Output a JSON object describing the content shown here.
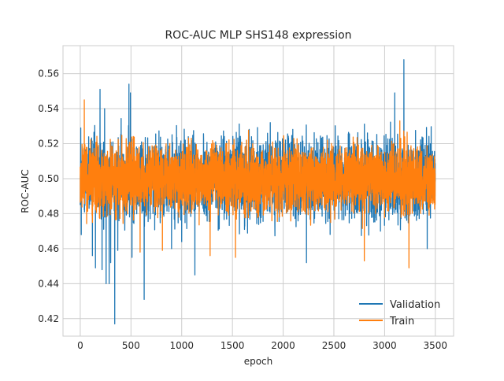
{
  "chart_data": {
    "type": "line",
    "title": "ROC-AUC MLP SHS148 expression",
    "xlabel": "epoch",
    "ylabel": "ROC-AUC",
    "xlim": [
      -170,
      3680
    ],
    "ylim": [
      0.41,
      0.576
    ],
    "xticks": [
      0,
      500,
      1000,
      1500,
      2000,
      2500,
      3000,
      3500
    ],
    "xtick_labels": [
      "0",
      "500",
      "1000",
      "1500",
      "2000",
      "2500",
      "3000",
      "3500"
    ],
    "yticks": [
      0.42,
      0.44,
      0.46,
      0.48,
      0.5,
      0.52,
      0.54,
      0.56
    ],
    "ytick_labels": [
      "0.42",
      "0.44",
      "0.46",
      "0.48",
      "0.50",
      "0.52",
      "0.54",
      "0.56"
    ],
    "grid": true,
    "legend_position": "lower-right",
    "n_epochs": 3500,
    "series": [
      {
        "name": "Validation",
        "color": "#1f77b4",
        "baseline": 0.5,
        "noise": 0.012,
        "spikes": [
          [
            5,
            0.529
          ],
          [
            10,
            0.468
          ],
          [
            120,
            0.456
          ],
          [
            150,
            0.449
          ],
          [
            195,
            0.551
          ],
          [
            215,
            0.448
          ],
          [
            240,
            0.54
          ],
          [
            255,
            0.44
          ],
          [
            285,
            0.44
          ],
          [
            300,
            0.452
          ],
          [
            340,
            0.417
          ],
          [
            370,
            0.459
          ],
          [
            480,
            0.554
          ],
          [
            495,
            0.549
          ],
          [
            510,
            0.455
          ],
          [
            630,
            0.431
          ],
          [
            900,
            0.46
          ],
          [
            1000,
            0.464
          ],
          [
            1130,
            0.445
          ],
          [
            2230,
            0.452
          ],
          [
            3100,
            0.549
          ],
          [
            3190,
            0.568
          ],
          [
            3420,
            0.46
          ]
        ]
      },
      {
        "name": "Train",
        "color": "#ff7f0e",
        "baseline": 0.5,
        "noise": 0.01,
        "spikes": [
          [
            40,
            0.545
          ],
          [
            120,
            0.475
          ],
          [
            590,
            0.458
          ],
          [
            810,
            0.459
          ],
          [
            1280,
            0.456
          ],
          [
            1530,
            0.455
          ],
          [
            2800,
            0.453
          ],
          [
            3150,
            0.533
          ],
          [
            3240,
            0.449
          ]
        ]
      }
    ]
  }
}
